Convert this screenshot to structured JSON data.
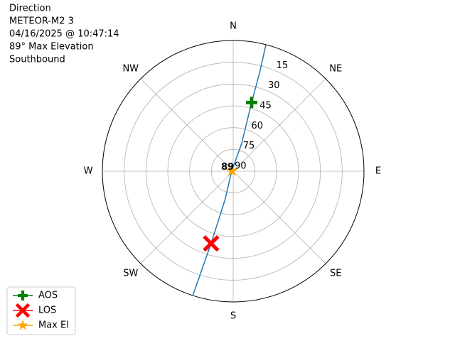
{
  "chart_data": {
    "type": "polar",
    "annotations": [
      "Direction",
      "METEOR-M2 3",
      "04/16/2025 @ 10:47:14",
      "89° Max Elevation",
      "Southbound"
    ],
    "xlim": [
      0,
      360
    ],
    "xticks": [
      {
        "value": 0,
        "label": "N"
      },
      {
        "value": 45,
        "label": "NE"
      },
      {
        "value": 90,
        "label": "E"
      },
      {
        "value": 135,
        "label": "SE"
      },
      {
        "value": 180,
        "label": "S"
      },
      {
        "value": 225,
        "label": "SW"
      },
      {
        "value": 270,
        "label": "W"
      },
      {
        "value": 315,
        "label": "NW"
      }
    ],
    "ylim": [
      90,
      0
    ],
    "yticks": [
      15,
      30,
      45,
      60,
      75,
      90
    ],
    "grid": true,
    "track": {
      "color": "#1f77b4",
      "x": [
        14.5,
        15,
        15,
        17,
        285,
        196,
        197,
        198
      ],
      "values": [
        0,
        20,
        41,
        70,
        89,
        70,
        38,
        0
      ]
    },
    "series": [
      {
        "name": "AOS",
        "color": "#008000",
        "marker": "plus",
        "x": [
          15
        ],
        "values": [
          41
        ]
      },
      {
        "name": "LOS",
        "color": "#ff0000",
        "marker": "x",
        "x": [
          197
        ],
        "values": [
          38
        ]
      },
      {
        "name": "Max El",
        "color": "#ffa500",
        "marker": "star",
        "x": [
          285
        ],
        "values": [
          89
        ]
      }
    ],
    "legend": "lower left"
  }
}
